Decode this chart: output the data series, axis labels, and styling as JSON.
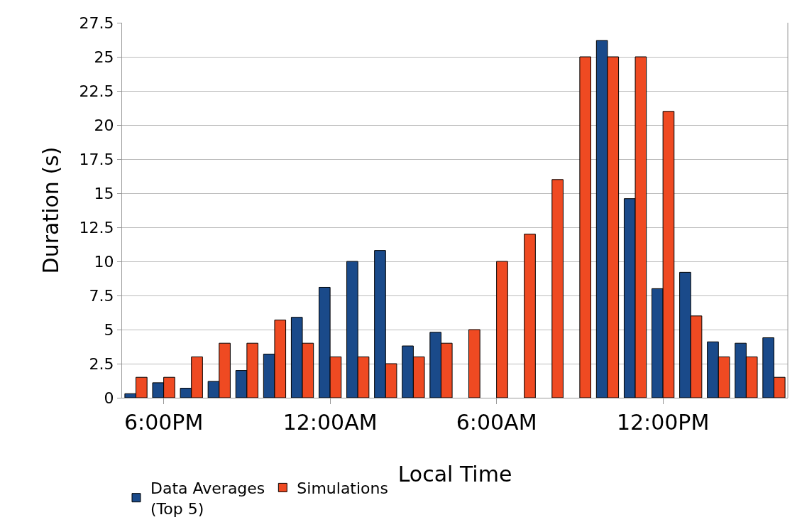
{
  "chart_data": {
    "type": "bar",
    "xlabel": "Local Time",
    "ylabel": "Duration (s)",
    "categories": [
      null,
      "6:00PM",
      null,
      null,
      null,
      null,
      null,
      "12:00AM",
      null,
      null,
      null,
      null,
      null,
      "6:00AM",
      null,
      null,
      null,
      null,
      null,
      "12:00PM",
      null,
      null,
      null,
      null
    ],
    "series": [
      {
        "name": "Data Averages (Top 5)",
        "color": "#1a4a8a",
        "values": [
          0.3,
          1.1,
          0.7,
          1.2,
          2.0,
          3.2,
          5.9,
          8.1,
          10,
          10.8,
          3.8,
          4.8,
          null,
          null,
          null,
          null,
          null,
          26.2,
          14.6,
          8,
          9.2,
          4.1,
          4.0,
          4.4
        ]
      },
      {
        "name": "Simulations",
        "color": "#ef4a22",
        "values": [
          1.5,
          1.5,
          3,
          4,
          4,
          5.7,
          4,
          3,
          3,
          2.5,
          3,
          4,
          5,
          10,
          12,
          16,
          25,
          25,
          25,
          21,
          6,
          3,
          3,
          1.5
        ]
      }
    ],
    "ylim": [
      0,
      27.5
    ],
    "yticks": [
      0,
      2.5,
      5,
      7.5,
      10,
      12.5,
      15,
      17.5,
      20,
      22.5,
      25,
      27.5
    ],
    "grid": "y",
    "legend": "bottom left"
  }
}
